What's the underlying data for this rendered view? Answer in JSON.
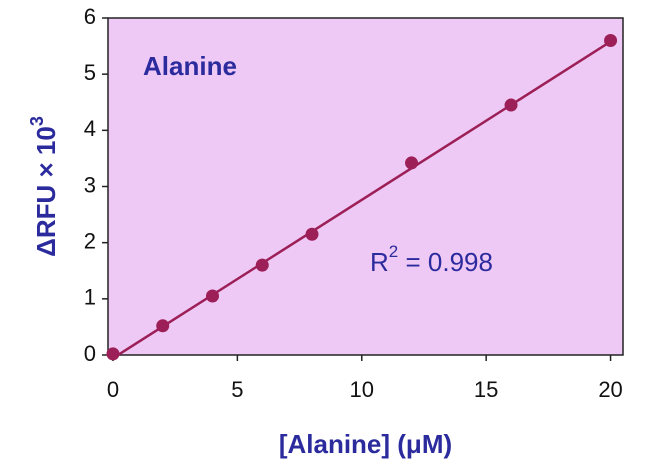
{
  "chart_data": {
    "type": "scatter",
    "title": "Alanine",
    "x_label": "[Alanine] (μM)",
    "y_label": {
      "base": "ΔRFU × 10",
      "sup": "3"
    },
    "annotation": {
      "base": "R",
      "sup": "2",
      "rest": " = 0.998"
    },
    "x": [
      0,
      2,
      4,
      6,
      8,
      12,
      16,
      20
    ],
    "series": [
      {
        "color": "#9c1f57",
        "values": [
          0.02,
          0.52,
          1.05,
          1.6,
          2.15,
          3.42,
          4.45,
          5.6
        ]
      }
    ],
    "fit": {
      "color": "#9c1f57",
      "x": [
        0.2,
        20
      ],
      "values": [
        0,
        5.58
      ]
    },
    "xlim": [
      -0.2,
      20.5
    ],
    "xticks": [
      0,
      5,
      10,
      15,
      20
    ],
    "ylim": [
      0,
      6
    ],
    "yticks": [
      0,
      1,
      2,
      3,
      4,
      5,
      6
    ],
    "background": "#efc9f5"
  }
}
